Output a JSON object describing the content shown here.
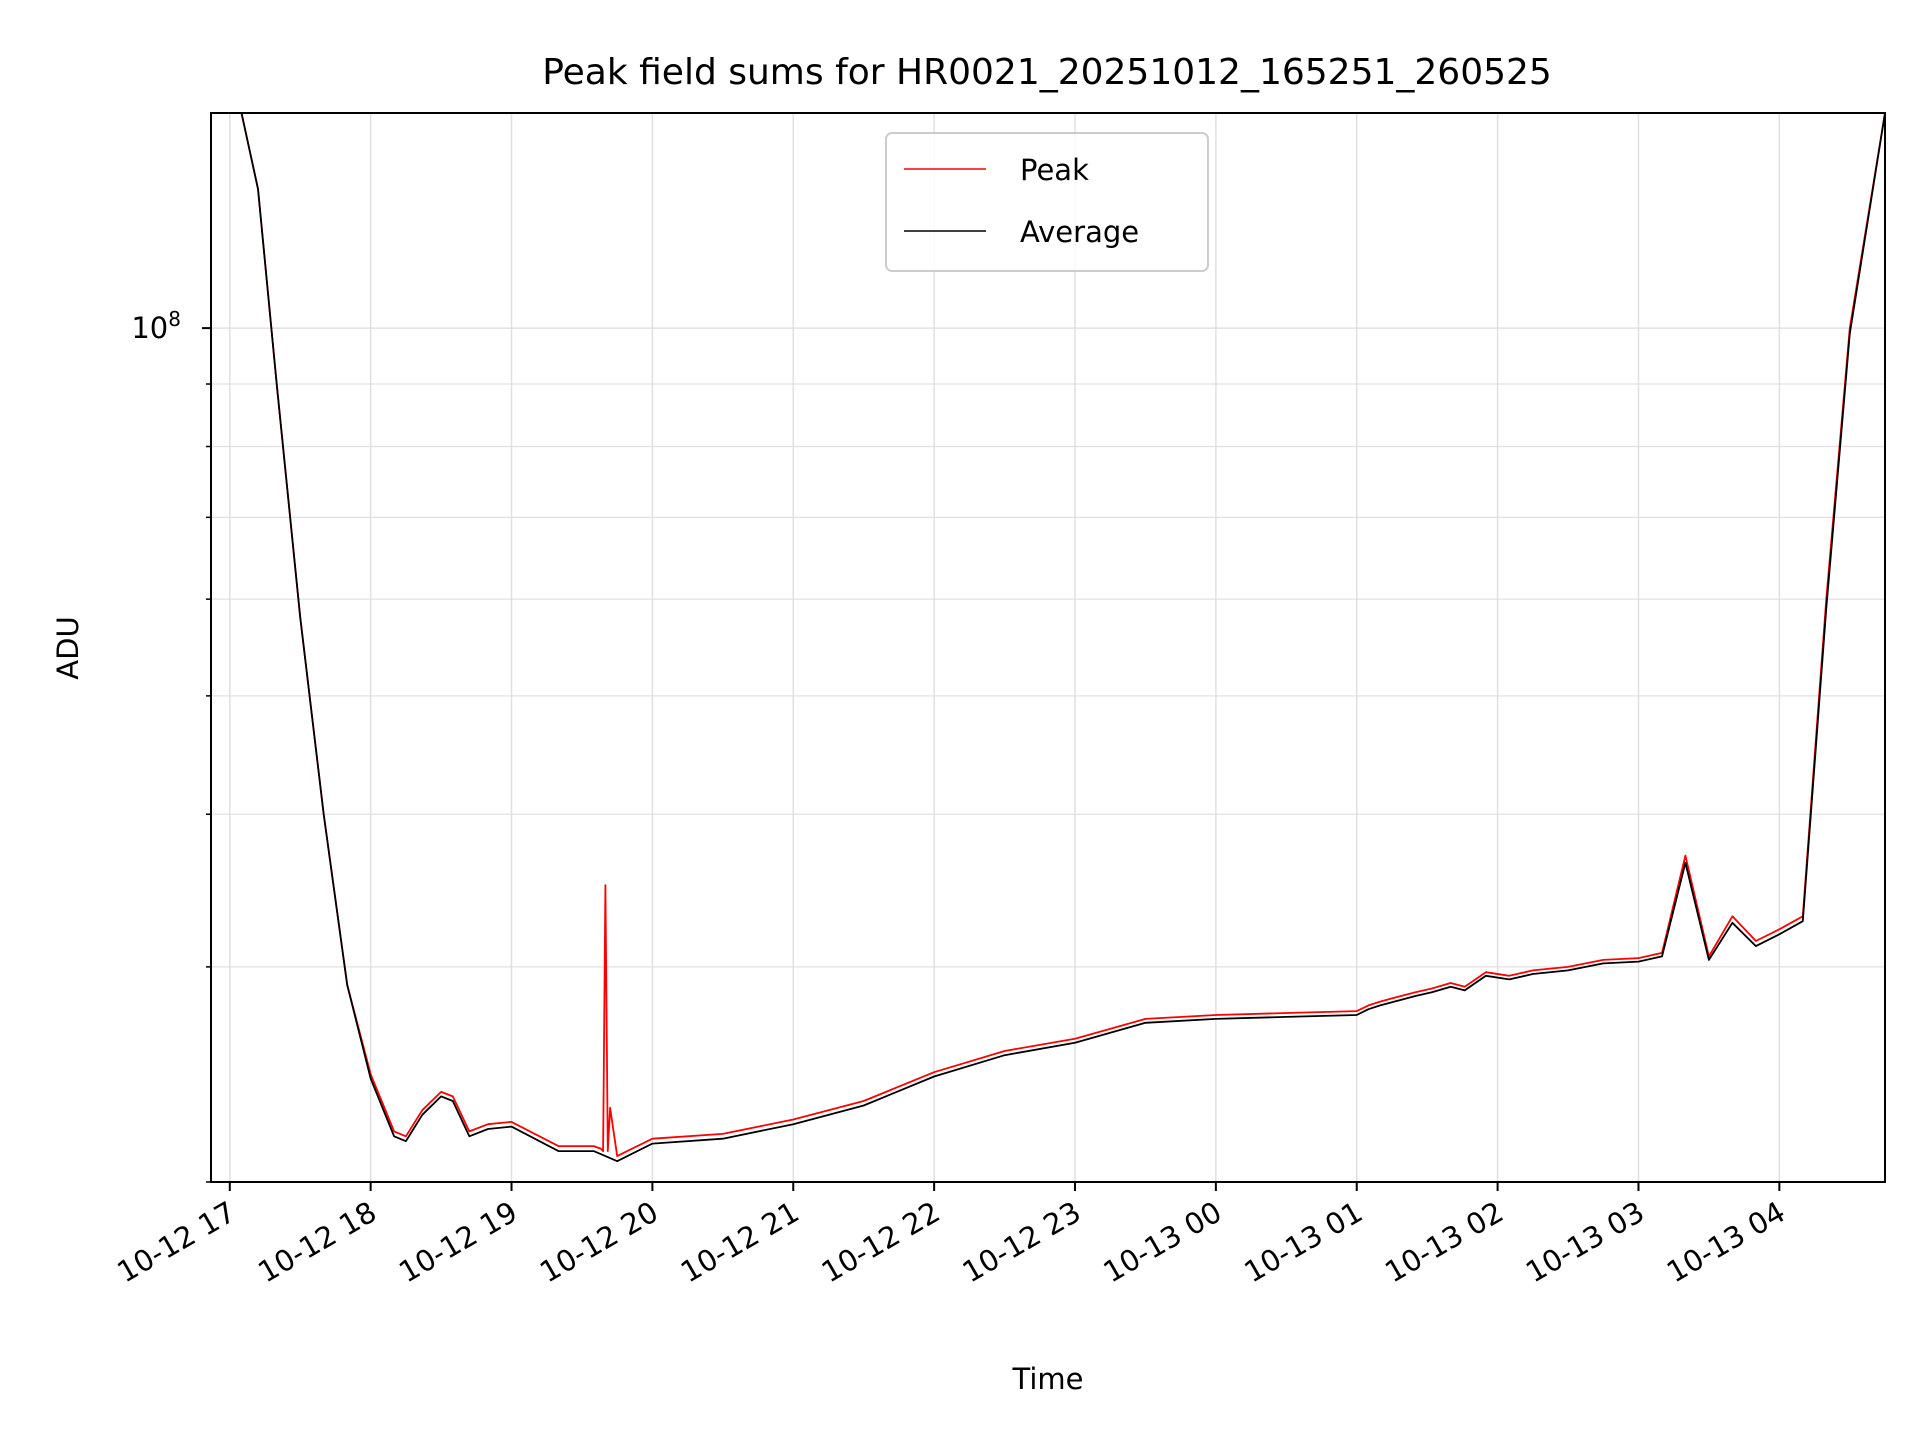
{
  "chart_data": {
    "type": "line",
    "title": "Peak field sums for HR0021_20251012_165251_260525",
    "xlabel": "Time",
    "ylabel": "ADU",
    "y_scale": "log",
    "grid": true,
    "legend_position": "top-center",
    "x_range": [
      "2025-10-12 16:52",
      "2025-10-13 04:45"
    ],
    "y_range": [
      20000000,
      150000000
    ],
    "x_tick_labels": [
      "10-12 17",
      "10-12 18",
      "10-12 19",
      "10-12 20",
      "10-12 21",
      "10-12 22",
      "10-12 23",
      "10-13 00",
      "10-13 01",
      "10-13 02",
      "10-13 03",
      "10-13 04"
    ],
    "y_tick_labels": [
      {
        "base": "10",
        "exp": "8",
        "value": 100000000
      }
    ],
    "series": [
      {
        "name": "Peak",
        "color": "#ff0000",
        "x": [
          "2025-10-12 16:52",
          "2025-10-12 17:05",
          "2025-10-12 17:12",
          "2025-10-12 17:20",
          "2025-10-12 17:30",
          "2025-10-12 17:40",
          "2025-10-12 17:50",
          "2025-10-12 18:00",
          "2025-10-12 18:10",
          "2025-10-12 18:15",
          "2025-10-12 18:22",
          "2025-10-12 18:30",
          "2025-10-12 18:35",
          "2025-10-12 18:42",
          "2025-10-12 18:50",
          "2025-10-12 19:00",
          "2025-10-12 19:20",
          "2025-10-12 19:35",
          "2025-10-12 19:38",
          "2025-10-12 19:39",
          "2025-10-12 19:40",
          "2025-10-12 19:41",
          "2025-10-12 19:42",
          "2025-10-12 19:45",
          "2025-10-12 20:00",
          "2025-10-12 20:30",
          "2025-10-12 21:00",
          "2025-10-12 21:30",
          "2025-10-12 22:00",
          "2025-10-12 22:30",
          "2025-10-12 23:00",
          "2025-10-12 23:30",
          "2025-10-13 00:00",
          "2025-10-13 00:30",
          "2025-10-13 01:00",
          "2025-10-13 01:05",
          "2025-10-13 01:10",
          "2025-10-13 01:16",
          "2025-10-13 01:25",
          "2025-10-13 01:32",
          "2025-10-13 01:40",
          "2025-10-13 01:46",
          "2025-10-13 01:55",
          "2025-10-13 02:05",
          "2025-10-13 02:15",
          "2025-10-13 02:30",
          "2025-10-13 02:45",
          "2025-10-13 03:00",
          "2025-10-13 03:10",
          "2025-10-13 03:20",
          "2025-10-13 03:30",
          "2025-10-13 03:40",
          "2025-10-13 03:50",
          "2025-10-13 04:00",
          "2025-10-13 04:10",
          "2025-10-13 04:20",
          "2025-10-13 04:30",
          "2025-10-13 04:45"
        ],
        "y": [
          150000000,
          150000000,
          130000000,
          90000000,
          58000000,
          40000000,
          29000000,
          24500000,
          22000000,
          21800000,
          22900000,
          23700000,
          23500000,
          22000000,
          22300000,
          22400000,
          21400000,
          21400000,
          21300000,
          21200000,
          35000000,
          21200000,
          23000000,
          21000000,
          21700000,
          21900000,
          22500000,
          23300000,
          24600000,
          25600000,
          26200000,
          27200000,
          27400000,
          27500000,
          27600000,
          27900000,
          28100000,
          28300000,
          28600000,
          28800000,
          29100000,
          28900000,
          29700000,
          29500000,
          29800000,
          30000000,
          30400000,
          30500000,
          30800000,
          37000000,
          30600000,
          33000000,
          31500000,
          32200000,
          33000000,
          60000000,
          100000000,
          150000000
        ]
      },
      {
        "name": "Average",
        "color": "#000000",
        "x": [
          "2025-10-12 16:52",
          "2025-10-12 17:05",
          "2025-10-12 17:12",
          "2025-10-12 17:20",
          "2025-10-12 17:30",
          "2025-10-12 17:40",
          "2025-10-12 17:50",
          "2025-10-12 18:00",
          "2025-10-12 18:10",
          "2025-10-12 18:15",
          "2025-10-12 18:22",
          "2025-10-12 18:30",
          "2025-10-12 18:35",
          "2025-10-12 18:42",
          "2025-10-12 18:50",
          "2025-10-12 19:00",
          "2025-10-12 19:20",
          "2025-10-12 19:35",
          "2025-10-12 19:40",
          "2025-10-12 19:45",
          "2025-10-12 20:00",
          "2025-10-12 20:30",
          "2025-10-12 21:00",
          "2025-10-12 21:30",
          "2025-10-12 22:00",
          "2025-10-12 22:30",
          "2025-10-12 23:00",
          "2025-10-12 23:30",
          "2025-10-13 00:00",
          "2025-10-13 00:30",
          "2025-10-13 01:00",
          "2025-10-13 01:05",
          "2025-10-13 01:10",
          "2025-10-13 01:16",
          "2025-10-13 01:25",
          "2025-10-13 01:32",
          "2025-10-13 01:40",
          "2025-10-13 01:46",
          "2025-10-13 01:55",
          "2025-10-13 02:05",
          "2025-10-13 02:15",
          "2025-10-13 02:30",
          "2025-10-13 02:45",
          "2025-10-13 03:00",
          "2025-10-13 03:10",
          "2025-10-13 03:20",
          "2025-10-13 03:30",
          "2025-10-13 03:40",
          "2025-10-13 03:50",
          "2025-10-13 04:00",
          "2025-10-13 04:10",
          "2025-10-13 04:20",
          "2025-10-13 04:30",
          "2025-10-13 04:45"
        ],
        "y": [
          150000000,
          150000000,
          130000000,
          90000000,
          58000000,
          40000000,
          29000000,
          24300000,
          21800000,
          21600000,
          22700000,
          23500000,
          23300000,
          21800000,
          22100000,
          22200000,
          21200000,
          21200000,
          21000000,
          20800000,
          21500000,
          21700000,
          22300000,
          23100000,
          24400000,
          25400000,
          26000000,
          27000000,
          27200000,
          27300000,
          27400000,
          27700000,
          27900000,
          28100000,
          28400000,
          28600000,
          28900000,
          28700000,
          29500000,
          29300000,
          29600000,
          29800000,
          30200000,
          30300000,
          30600000,
          36500000,
          30400000,
          32600000,
          31200000,
          31900000,
          32700000,
          59000000,
          99000000,
          150000000
        ]
      }
    ]
  }
}
